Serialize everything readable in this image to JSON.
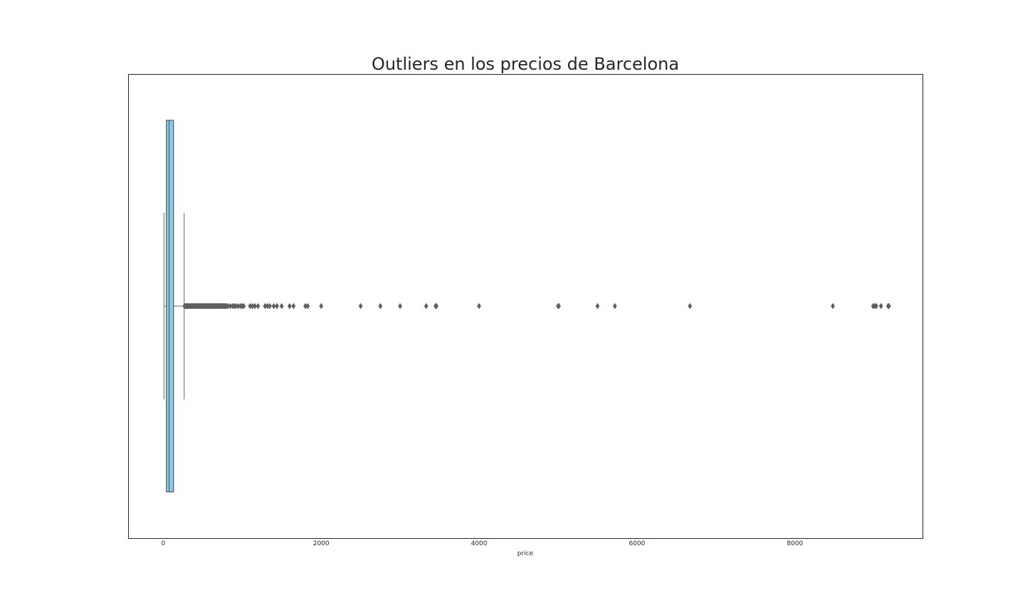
{
  "chart_data": {
    "type": "boxplot",
    "orientation": "horizontal",
    "title": "Outliers en los precios de Barcelona",
    "xlabel": "price",
    "ylabel": "",
    "xlim": [
      -440,
      9620
    ],
    "xticks": [
      0,
      2000,
      4000,
      6000,
      8000
    ],
    "xtick_labels": [
      "0",
      "2000",
      "4000",
      "6000",
      "8000"
    ],
    "grid": false,
    "legend": "none",
    "box": {
      "whisker_low": 10,
      "q1": 40,
      "median": 75,
      "q3": 130,
      "whisker_high": 265
    },
    "outliers": [
      270,
      280,
      290,
      300,
      310,
      320,
      330,
      340,
      350,
      360,
      370,
      380,
      390,
      400,
      410,
      420,
      430,
      440,
      450,
      460,
      470,
      480,
      490,
      500,
      510,
      520,
      530,
      540,
      550,
      560,
      570,
      580,
      590,
      600,
      610,
      620,
      630,
      640,
      650,
      660,
      670,
      680,
      690,
      700,
      710,
      720,
      730,
      740,
      750,
      760,
      770,
      780,
      790,
      800,
      820,
      850,
      880,
      900,
      920,
      950,
      980,
      1000,
      1020,
      1100,
      1130,
      1160,
      1200,
      1290,
      1320,
      1350,
      1400,
      1440,
      1500,
      1600,
      1650,
      1800,
      1830,
      2000,
      2500,
      2750,
      3000,
      3330,
      3450,
      3460,
      4000,
      5000,
      5010,
      5500,
      5720,
      6670,
      8480,
      8990,
      9010,
      9030,
      9090,
      9180,
      9190
    ],
    "colors": {
      "box_fill": "#87CEEB",
      "box_edge": "#555555",
      "whisker": "#808080",
      "outlier": "#5f5f5f",
      "frame": "#262626"
    }
  }
}
